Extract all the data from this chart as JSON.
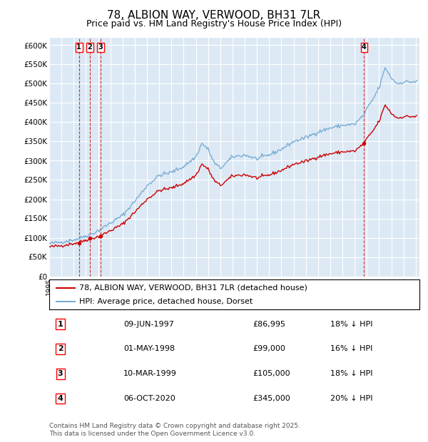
{
  "title": "78, ALBION WAY, VERWOOD, BH31 7LR",
  "subtitle": "Price paid vs. HM Land Registry's House Price Index (HPI)",
  "title_fontsize": 11,
  "subtitle_fontsize": 9,
  "background_color": "#ffffff",
  "plot_bg_color": "#dce9f5",
  "grid_color": "#ffffff",
  "ylim": [
    0,
    620000
  ],
  "yticks": [
    0,
    50000,
    100000,
    150000,
    200000,
    250000,
    300000,
    350000,
    400000,
    450000,
    500000,
    550000,
    600000
  ],
  "sales": [
    {
      "x": 1997.44,
      "price": 86995,
      "label": "1"
    },
    {
      "x": 1998.33,
      "price": 99000,
      "label": "2"
    },
    {
      "x": 1999.19,
      "price": 105000,
      "label": "3"
    },
    {
      "x": 2020.77,
      "price": 345000,
      "label": "4"
    }
  ],
  "sale_color": "#cc0000",
  "hpi_color": "#7aadd4",
  "sale_line_label": "78, ALBION WAY, VERWOOD, BH31 7LR (detached house)",
  "hpi_line_label": "HPI: Average price, detached house, Dorset",
  "footnote": "Contains HM Land Registry data © Crown copyright and database right 2025.\nThis data is licensed under the Open Government Licence v3.0.",
  "table": [
    {
      "num": "1",
      "date": "09-JUN-1997",
      "price": "£86,995",
      "note": "18% ↓ HPI"
    },
    {
      "num": "2",
      "date": "01-MAY-1998",
      "price": "£99,000",
      "note": "16% ↓ HPI"
    },
    {
      "num": "3",
      "date": "10-MAR-1999",
      "price": "£105,000",
      "note": "18% ↓ HPI"
    },
    {
      "num": "4",
      "date": "06-OCT-2020",
      "price": "£345,000",
      "note": "20% ↓ HPI"
    }
  ],
  "hpi_anchors_x": [
    1995.0,
    1996.0,
    1997.0,
    1997.44,
    1998.0,
    1998.33,
    1999.0,
    1999.19,
    2000.0,
    2001.0,
    2002.0,
    2003.0,
    2004.0,
    2005.0,
    2006.0,
    2007.0,
    2007.5,
    2008.0,
    2008.5,
    2009.0,
    2009.5,
    2010.0,
    2011.0,
    2012.0,
    2013.0,
    2014.0,
    2015.0,
    2016.0,
    2017.0,
    2018.0,
    2019.0,
    2020.0,
    2020.77,
    2021.0,
    2021.5,
    2022.0,
    2022.5,
    2023.0,
    2023.5,
    2024.0,
    2024.5,
    2025.0
  ],
  "hpi_anchors_y": [
    85000,
    89000,
    95000,
    98000,
    105000,
    108000,
    118000,
    122000,
    138000,
    158000,
    195000,
    235000,
    262000,
    270000,
    285000,
    310000,
    345000,
    330000,
    295000,
    280000,
    295000,
    310000,
    315000,
    305000,
    315000,
    330000,
    350000,
    360000,
    375000,
    385000,
    392000,
    395000,
    420000,
    435000,
    460000,
    490000,
    542000,
    515000,
    500000,
    505000,
    505000,
    505000
  ]
}
